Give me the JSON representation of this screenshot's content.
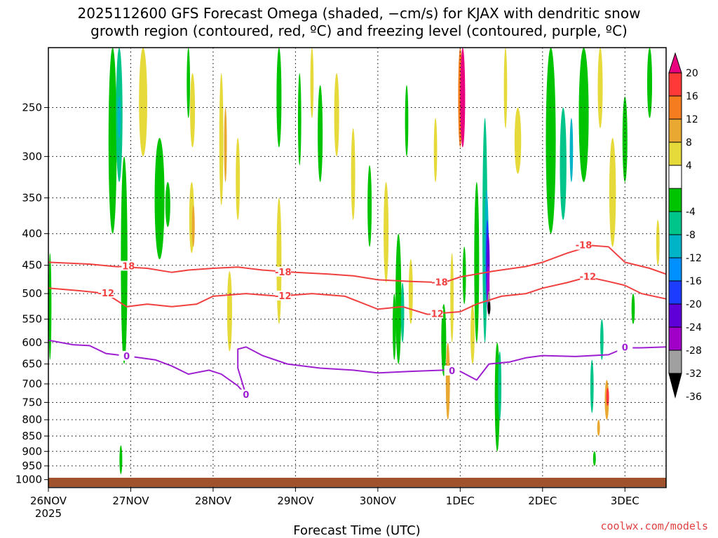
{
  "title": {
    "line1": "2025112600 GFS Forecast Omega (shaded, −cm/s) for KJAX with dendritic snow",
    "line2": "growth region (contoured, red, ºC) and freezing level (contoured, purple, ºC)"
  },
  "credit": "coolwx.com/models",
  "chart_data": {
    "type": "heatmap",
    "xlabel": "Forecast Time (UTC)",
    "ylabel": "",
    "x_ticks": [
      {
        "label": "26NOV",
        "sublabel": "2025",
        "day": 0
      },
      {
        "label": "27NOV",
        "day": 1
      },
      {
        "label": "28NOV",
        "day": 2
      },
      {
        "label": "29NOV",
        "day": 3
      },
      {
        "label": "30NOV",
        "day": 4
      },
      {
        "label": "1DEC",
        "day": 5
      },
      {
        "label": "2DEC",
        "day": 6
      },
      {
        "label": "3DEC",
        "day": 7
      }
    ],
    "xlim_days": [
      0,
      7.5
    ],
    "y_ticks": [
      250,
      300,
      350,
      400,
      450,
      500,
      550,
      600,
      650,
      700,
      750,
      800,
      850,
      900,
      950,
      1000
    ],
    "ylim_hpa": [
      200,
      1030
    ],
    "y_scale": "log",
    "grid": "dotted",
    "colorbar": {
      "position": "right",
      "ticks": [
        "20",
        "16",
        "12",
        "8",
        "4",
        "-4",
        "-8",
        "-12",
        "-16",
        "-20",
        "-24",
        "-28",
        "-32",
        "-36"
      ],
      "bins": [
        {
          "range": ">20",
          "color": "#e8007e"
        },
        {
          "range": "16 to 20",
          "color": "#ff3838"
        },
        {
          "range": "12 to 16",
          "color": "#f57d1f"
        },
        {
          "range": "8 to 12",
          "color": "#e8a832"
        },
        {
          "range": "4 to 8",
          "color": "#e6d93a"
        },
        {
          "range": "-4 to 4",
          "color": "#ffffff"
        },
        {
          "range": "-8 to -4",
          "color": "#00c400"
        },
        {
          "range": "-12 to -8",
          "color": "#00c58a"
        },
        {
          "range": "-16 to -12",
          "color": "#00b4c8"
        },
        {
          "range": "-20 to -16",
          "color": "#0090ff"
        },
        {
          "range": "-24 to -20",
          "color": "#1c3cff"
        },
        {
          "range": "-28 to -24",
          "color": "#6000d8"
        },
        {
          "range": "-32 to -28",
          "color": "#a000c8"
        },
        {
          "range": "-36 to -32",
          "color": "#a0a0a0"
        },
        {
          "range": "<-36",
          "color": "#000000"
        }
      ]
    },
    "ground_color": "#a0522d",
    "contours": [
      {
        "label": "-18",
        "color": "#f04040",
        "label_at_day": [
          0.95,
          2.85,
          4.75,
          6.5
        ],
        "points_day_hpa": [
          [
            0,
            445
          ],
          [
            0.5,
            448
          ],
          [
            0.8,
            452
          ],
          [
            1.2,
            455
          ],
          [
            1.5,
            462
          ],
          [
            1.7,
            458
          ],
          [
            2.0,
            455
          ],
          [
            2.3,
            453
          ],
          [
            2.6,
            458
          ],
          [
            3.0,
            462
          ],
          [
            3.4,
            465
          ],
          [
            3.7,
            468
          ],
          [
            4.0,
            475
          ],
          [
            4.4,
            478
          ],
          [
            4.8,
            480
          ],
          [
            5.0,
            470
          ],
          [
            5.4,
            460
          ],
          [
            5.8,
            452
          ],
          [
            6.0,
            445
          ],
          [
            6.3,
            430
          ],
          [
            6.6,
            418
          ],
          [
            6.8,
            420
          ],
          [
            7.0,
            445
          ],
          [
            7.3,
            455
          ],
          [
            7.5,
            465
          ]
        ]
      },
      {
        "label": "-12",
        "color": "#f04040",
        "label_at_day": [
          0.7,
          2.85,
          4.7,
          6.55
        ],
        "points_day_hpa": [
          [
            0,
            490
          ],
          [
            0.4,
            495
          ],
          [
            0.7,
            500
          ],
          [
            0.95,
            525
          ],
          [
            1.2,
            520
          ],
          [
            1.5,
            525
          ],
          [
            1.8,
            520
          ],
          [
            2.0,
            505
          ],
          [
            2.4,
            500
          ],
          [
            2.8,
            505
          ],
          [
            3.2,
            500
          ],
          [
            3.6,
            505
          ],
          [
            4.0,
            530
          ],
          [
            4.3,
            525
          ],
          [
            4.6,
            540
          ],
          [
            5.0,
            535
          ],
          [
            5.2,
            520
          ],
          [
            5.5,
            505
          ],
          [
            5.8,
            500
          ],
          [
            6.0,
            490
          ],
          [
            6.3,
            480
          ],
          [
            6.55,
            470
          ],
          [
            6.8,
            478
          ],
          [
            7.0,
            485
          ],
          [
            7.2,
            500
          ],
          [
            7.5,
            510
          ]
        ]
      },
      {
        "label": "0",
        "color": "#9d1fd1",
        "label_at_day": [
          0.95,
          2.4,
          4.9,
          7.0
        ],
        "points_day_hpa": [
          [
            0,
            595
          ],
          [
            0.3,
            605
          ],
          [
            0.5,
            607
          ],
          [
            0.7,
            625
          ],
          [
            1.0,
            632
          ],
          [
            1.3,
            640
          ],
          [
            1.5,
            655
          ],
          [
            1.7,
            675
          ],
          [
            1.95,
            665
          ],
          [
            2.1,
            675
          ],
          [
            2.3,
            705
          ],
          [
            2.4,
            730
          ],
          [
            2.3,
            660
          ],
          [
            2.3,
            615
          ],
          [
            2.4,
            610
          ],
          [
            2.6,
            630
          ],
          [
            2.9,
            650
          ],
          [
            3.3,
            660
          ],
          [
            3.7,
            665
          ],
          [
            4.0,
            672
          ],
          [
            4.4,
            668
          ],
          [
            4.8,
            665
          ],
          [
            5.0,
            668
          ],
          [
            5.2,
            690
          ],
          [
            5.35,
            650
          ],
          [
            5.6,
            645
          ],
          [
            5.8,
            635
          ],
          [
            6.0,
            630
          ],
          [
            6.4,
            632
          ],
          [
            6.8,
            628
          ],
          [
            7.0,
            612
          ],
          [
            7.2,
            612
          ],
          [
            7.5,
            610
          ]
        ]
      }
    ],
    "shading_note": "Omega bins shaded per colorbar; vertical plumes of -4 to -8 (green) and 4 to 8 (yellow) throughout, strongest ascent near 1DEC 06Z (-32 to -36 below 500 hPa) and descent >20 near 1DEC 00Z above 300 hPa."
  }
}
